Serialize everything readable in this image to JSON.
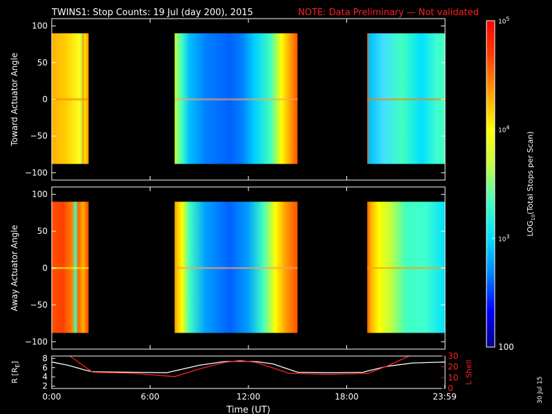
{
  "header": {
    "title": "TWINS1: Stop Counts: 19 Jul (day 200), 2015",
    "note": "NOTE: Data Preliminary — Not validated"
  },
  "colorbar": {
    "label_main": "LOG",
    "label_sub": "10",
    "label_rest": "(Total Stops per Scan)",
    "ticks": [
      {
        "value": 100,
        "text": "100"
      },
      {
        "value": 1000,
        "base": "10",
        "exp": "3"
      },
      {
        "value": 10000,
        "base": "10",
        "exp": "4"
      },
      {
        "value": 100000,
        "base": "10",
        "exp": "5"
      }
    ],
    "colors": [
      "#00008b",
      "#0000ff",
      "#0080ff",
      "#00e0ff",
      "#40ffc0",
      "#c0ff40",
      "#ffff00",
      "#ffa000",
      "#ff4000",
      "#ff0000"
    ]
  },
  "stamp": "30 Jul 15",
  "chart_data": [
    {
      "type": "heatmap",
      "name": "toward",
      "ylabel": "Toward Actuator Angle",
      "ylim": [
        -110,
        110
      ],
      "yticks": [
        "100",
        "50",
        "0",
        "−50",
        "−100"
      ],
      "ytick_values": [
        100,
        50,
        0,
        -50,
        -100
      ],
      "data_ylim": [
        -88,
        90
      ],
      "xlim": [
        0,
        24
      ],
      "segments": [
        {
          "start_h": 0.0,
          "end_h": 2.25,
          "stops": [
            [
              "#ffb000",
              0
            ],
            [
              "#ffd000",
              0.4
            ],
            [
              "#ffff20",
              0.75
            ],
            [
              "#c0ff40",
              0.8
            ],
            [
              "#ffa000",
              0.85
            ],
            [
              "#ffe000",
              0.9
            ],
            [
              "#ff9000",
              1
            ]
          ],
          "gap_line": "#ff8000"
        },
        {
          "start_h": 7.5,
          "end_h": 15.0,
          "stops": [
            [
              "#c0ff40",
              0
            ],
            [
              "#40ffc0",
              0.06
            ],
            [
              "#00c0ff",
              0.12
            ],
            [
              "#0080ff",
              0.25
            ],
            [
              "#0060ff",
              0.45
            ],
            [
              "#0080ff",
              0.55
            ],
            [
              "#00d0ff",
              0.65
            ],
            [
              "#40ffc0",
              0.78
            ],
            [
              "#ffff00",
              0.87
            ],
            [
              "#ffa000",
              0.94
            ],
            [
              "#ff5000",
              1
            ]
          ],
          "gap_line": "#ffa060"
        },
        {
          "start_h": 19.25,
          "end_h": 24.0,
          "stops": [
            [
              "#ff6000",
              0
            ],
            [
              "#00c0ff",
              0.03
            ],
            [
              "#40e0ff",
              0.2
            ],
            [
              "#40ffc0",
              0.45
            ],
            [
              "#00e0ff",
              0.7
            ],
            [
              "#40ffd0",
              0.9
            ],
            [
              "#40ffc0",
              1
            ]
          ],
          "gap_line": "#ff8000"
        }
      ]
    },
    {
      "type": "heatmap",
      "name": "away",
      "ylabel": "Away Actuator Angle",
      "ylim": [
        -110,
        110
      ],
      "yticks": [
        "100",
        "50",
        "0",
        "−50",
        "−100"
      ],
      "ytick_values": [
        100,
        50,
        0,
        -50,
        -100
      ],
      "data_ylim": [
        -88,
        90
      ],
      "xlim": [
        0,
        24
      ],
      "segments": [
        {
          "start_h": 0.0,
          "end_h": 2.25,
          "stops": [
            [
              "#ff5000",
              0
            ],
            [
              "#ff4000",
              0.3
            ],
            [
              "#ff8000",
              0.55
            ],
            [
              "#40ffc0",
              0.65
            ],
            [
              "#ff6000",
              0.72
            ],
            [
              "#ffb000",
              0.85
            ],
            [
              "#ff4000",
              1
            ]
          ],
          "gap_line": "#ffff00"
        },
        {
          "start_h": 7.5,
          "end_h": 15.0,
          "stops": [
            [
              "#ffa000",
              0
            ],
            [
              "#ffff00",
              0.06
            ],
            [
              "#40ffc0",
              0.12
            ],
            [
              "#00a0ff",
              0.25
            ],
            [
              "#0060ff",
              0.45
            ],
            [
              "#00a0ff",
              0.6
            ],
            [
              "#40ffc0",
              0.72
            ],
            [
              "#ffff00",
              0.82
            ],
            [
              "#ffa000",
              0.9
            ],
            [
              "#ff5000",
              1
            ]
          ],
          "gap_line": "#ffa060"
        },
        {
          "start_h": 19.25,
          "end_h": 24.0,
          "stops": [
            [
              "#ff6000",
              0
            ],
            [
              "#ffb000",
              0.05
            ],
            [
              "#ffff00",
              0.15
            ],
            [
              "#c0ff40",
              0.3
            ],
            [
              "#40ffc0",
              0.5
            ],
            [
              "#40ffd0",
              0.75
            ],
            [
              "#00e0ff",
              1
            ]
          ],
          "gap_line": "#ffa000"
        }
      ]
    },
    {
      "type": "line",
      "name": "orbit",
      "xlabel": "Time (UT)",
      "xticks": [
        "0:00",
        "6:00",
        "12:00",
        "18:00",
        "23:59"
      ],
      "xtick_values": [
        0,
        6,
        12,
        18,
        23.98
      ],
      "ylabel_left_main": "R [R",
      "ylabel_left_sub": "E",
      "ylabel_left_end": "]",
      "ylabel_right": "L Shell",
      "ylim_left": [
        1.5,
        8.5
      ],
      "ylim_right": [
        0,
        30
      ],
      "yticks_left": [
        "2",
        "4",
        "6",
        "8"
      ],
      "ytick_values_left": [
        2,
        4,
        6,
        8
      ],
      "yticks_right": [
        "0",
        "10",
        "20",
        "30"
      ],
      "ytick_values_right": [
        0,
        10,
        20,
        30
      ],
      "series": [
        {
          "name": "R",
          "axis": "left",
          "color": "#ffffff",
          "x": [
            0,
            1.0,
            2.0,
            2.5,
            5.0,
            7.0,
            7.5,
            9.0,
            10.5,
            11.5,
            12.5,
            13.5,
            14.5,
            15.0,
            17.0,
            19.0,
            19.3,
            20.5,
            22.0,
            23.0,
            24.0
          ],
          "y": [
            7.2,
            6.5,
            5.5,
            5.1,
            5.0,
            4.9,
            5.3,
            6.5,
            7.3,
            7.4,
            7.3,
            6.8,
            5.6,
            5.0,
            4.9,
            5.0,
            5.3,
            6.3,
            7.0,
            7.1,
            7.2
          ]
        },
        {
          "name": "L Shell",
          "axis": "right",
          "color": "#ff2020",
          "x": [
            1.1,
            2.5,
            5.0,
            7.5,
            9.0,
            10.5,
            11.5,
            12.5,
            13.5,
            14.5,
            17.0,
            19.3,
            20.5,
            21.8
          ],
          "y": [
            30,
            15,
            14,
            11,
            18,
            24,
            26,
            24,
            19,
            14,
            13,
            14,
            21,
            30
          ]
        }
      ]
    }
  ]
}
